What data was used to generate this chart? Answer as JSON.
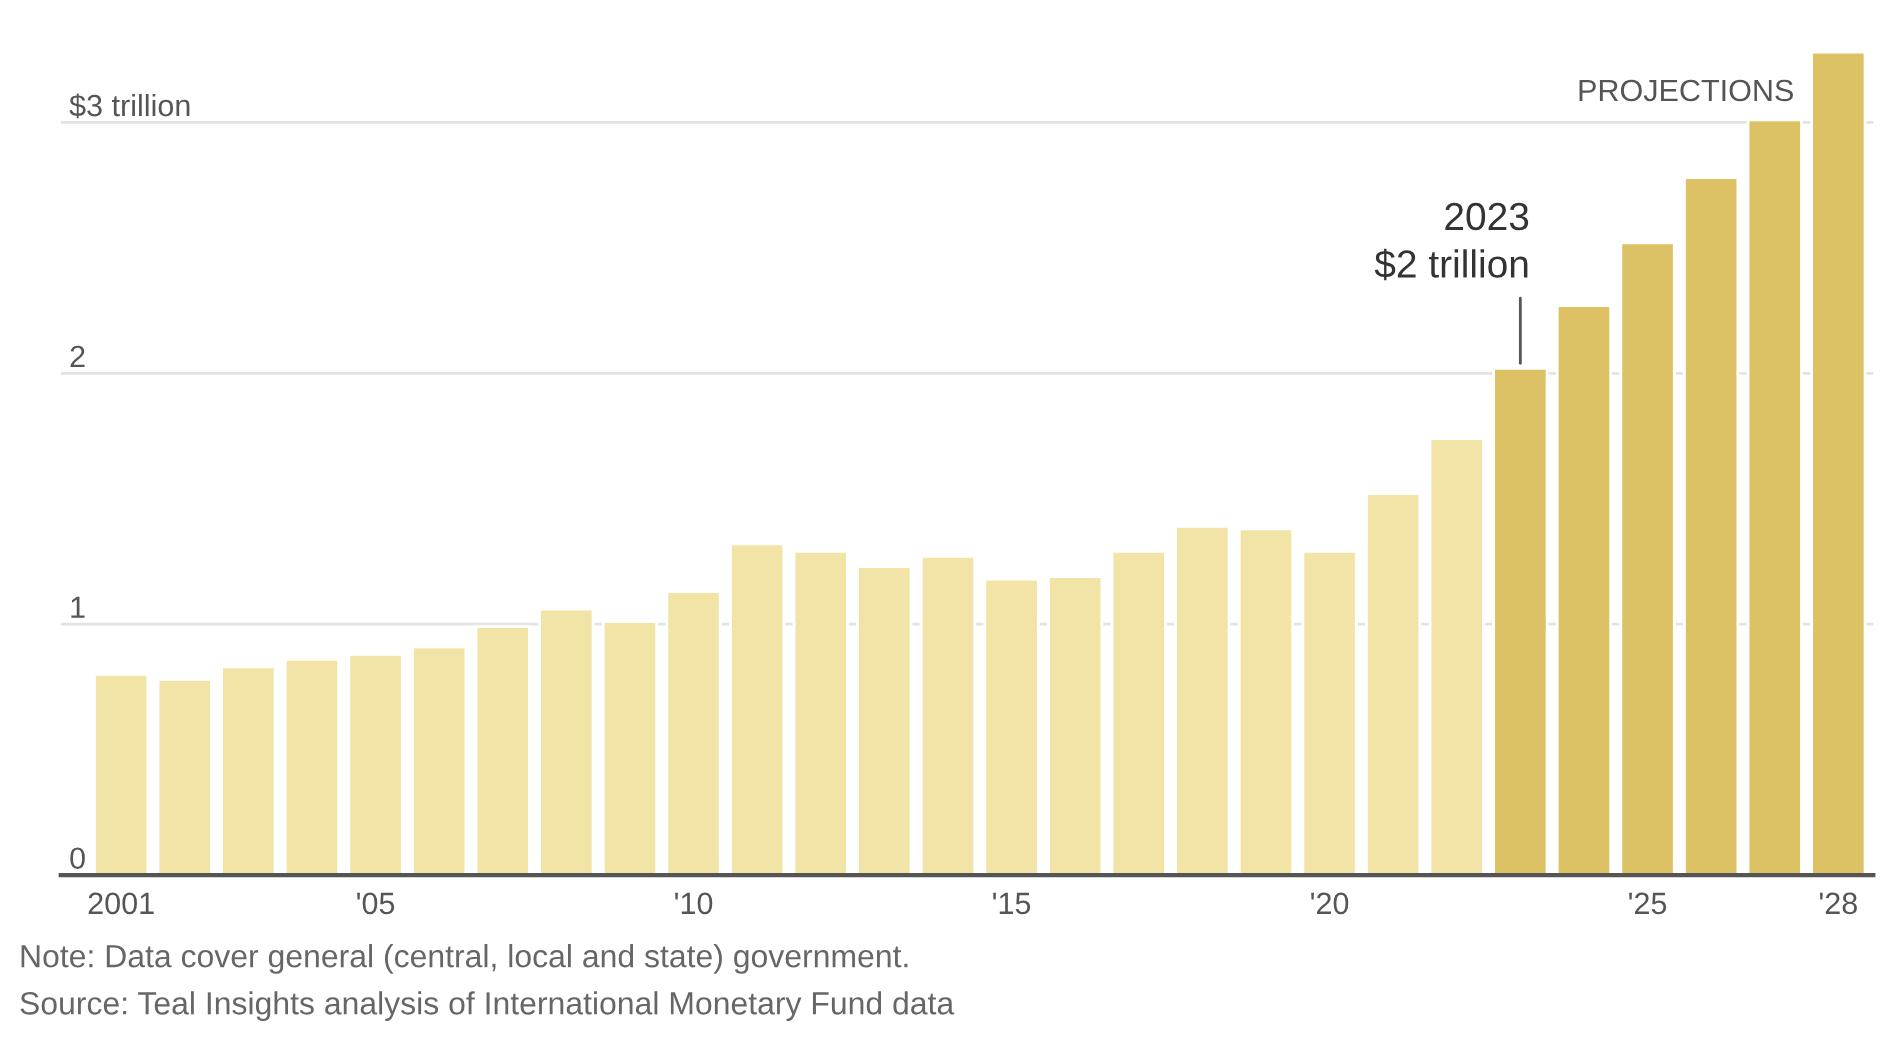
{
  "chart_data": {
    "type": "bar",
    "categories": [
      "2001",
      null,
      null,
      null,
      "'05",
      null,
      null,
      null,
      null,
      "'10",
      null,
      null,
      null,
      null,
      "'15",
      null,
      null,
      null,
      null,
      "'20",
      null,
      null,
      null,
      null,
      "'25",
      null,
      null,
      "'28"
    ],
    "values": [
      0.8,
      0.78,
      0.83,
      0.86,
      0.88,
      0.91,
      0.99,
      1.06,
      1.01,
      1.13,
      1.32,
      1.29,
      1.23,
      1.27,
      1.18,
      1.19,
      1.29,
      1.39,
      1.38,
      1.29,
      1.52,
      1.74,
      2.02,
      2.27,
      2.52,
      2.78,
      3.01,
      3.28
    ],
    "colors": [
      "#f2e4a6",
      "#f2e4a6",
      "#f2e4a6",
      "#f2e4a6",
      "#f2e4a6",
      "#f2e4a6",
      "#f2e4a6",
      "#f2e4a6",
      "#f2e4a6",
      "#f2e4a6",
      "#f2e4a6",
      "#f2e4a6",
      "#f2e4a6",
      "#f2e4a6",
      "#f2e4a6",
      "#f2e4a6",
      "#f2e4a6",
      "#f2e4a6",
      "#f2e4a6",
      "#f2e4a6",
      "#f2e4a6",
      "#f2e4a6",
      "#dcc264",
      "#dcc264",
      "#dcc264",
      "#dcc264",
      "#dcc264",
      "#dcc264"
    ],
    "ylim": [
      0,
      3.3
    ],
    "yticks": [
      0,
      1,
      2,
      {
        "value": 3,
        "label": "$3 trillion"
      }
    ],
    "grid": "y",
    "legend": false,
    "annotations": [
      "PROJECTIONS",
      "2023\n$2 trillion",
      "Note: Data cover general (central, local and state) government.",
      "Source: Teal Insights analysis of International Monetary Fund data"
    ]
  }
}
